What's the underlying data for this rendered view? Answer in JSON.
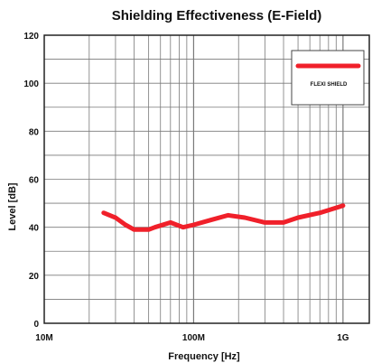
{
  "chart_data": {
    "type": "line",
    "title": "Shielding Effectiveness (E-Field)",
    "xlabel": "Frequency [Hz]",
    "ylabel": "Level [dB]",
    "x_scale": "log",
    "xlim": [
      10000000,
      1500000000
    ],
    "ylim": [
      0,
      120
    ],
    "x_ticks": [
      {
        "value": 10000000,
        "label": "10M"
      },
      {
        "value": 100000000,
        "label": "100M"
      },
      {
        "value": 1000000000,
        "label": "1G"
      }
    ],
    "y_ticks": [
      {
        "value": 0,
        "label": "0"
      },
      {
        "value": 20,
        "label": "20"
      },
      {
        "value": 40,
        "label": "40"
      },
      {
        "value": 60,
        "label": "60"
      },
      {
        "value": 80,
        "label": "80"
      },
      {
        "value": 100,
        "label": "100"
      },
      {
        "value": 120,
        "label": "120"
      }
    ],
    "grid": true,
    "legend_position": "top-right",
    "series": [
      {
        "name": "FLEXI SHIELD",
        "color": "#f0202a",
        "points": [
          [
            25000000,
            46
          ],
          [
            30000000,
            44
          ],
          [
            35000000,
            41
          ],
          [
            40000000,
            39
          ],
          [
            50000000,
            39
          ],
          [
            55000000,
            40
          ],
          [
            70000000,
            42
          ],
          [
            85000000,
            40
          ],
          [
            100000000,
            41
          ],
          [
            130000000,
            43
          ],
          [
            170000000,
            45
          ],
          [
            220000000,
            44
          ],
          [
            300000000,
            42
          ],
          [
            400000000,
            42
          ],
          [
            500000000,
            44
          ],
          [
            700000000,
            46
          ],
          [
            1000000000,
            49
          ]
        ]
      }
    ]
  }
}
